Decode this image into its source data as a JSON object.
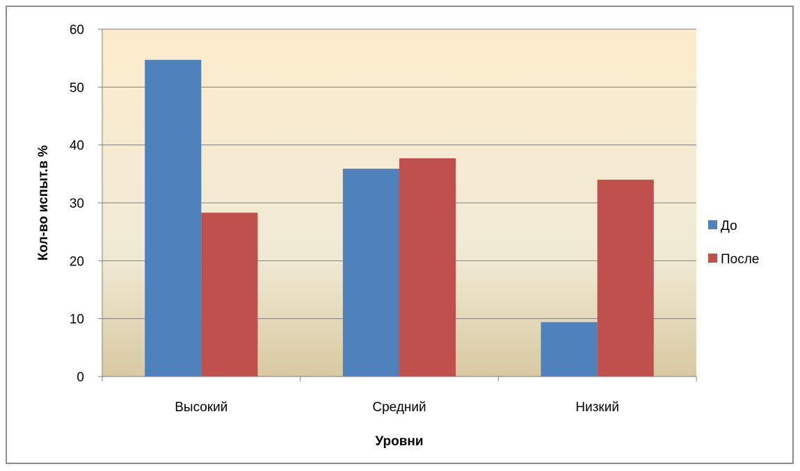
{
  "chart_data": {
    "type": "bar",
    "title": "",
    "xlabel": "Уровни",
    "ylabel": "Кол-во испыт.в %",
    "categories": [
      "Высокий",
      "Средний",
      "Низкий"
    ],
    "series": [
      {
        "name": "До",
        "values": [
          54.7,
          35.9,
          9.4
        ],
        "color": "#4f81bd"
      },
      {
        "name": "После",
        "values": [
          28.3,
          37.7,
          34.0
        ],
        "color": "#c0504d"
      }
    ],
    "ylim": [
      0,
      60
    ],
    "yticks": [
      0,
      10,
      20,
      30,
      40,
      50,
      60
    ],
    "grid": true,
    "legend": "right",
    "plot_background": [
      "#fdeccd",
      "#f0ead5",
      "#d9c9a1"
    ]
  }
}
